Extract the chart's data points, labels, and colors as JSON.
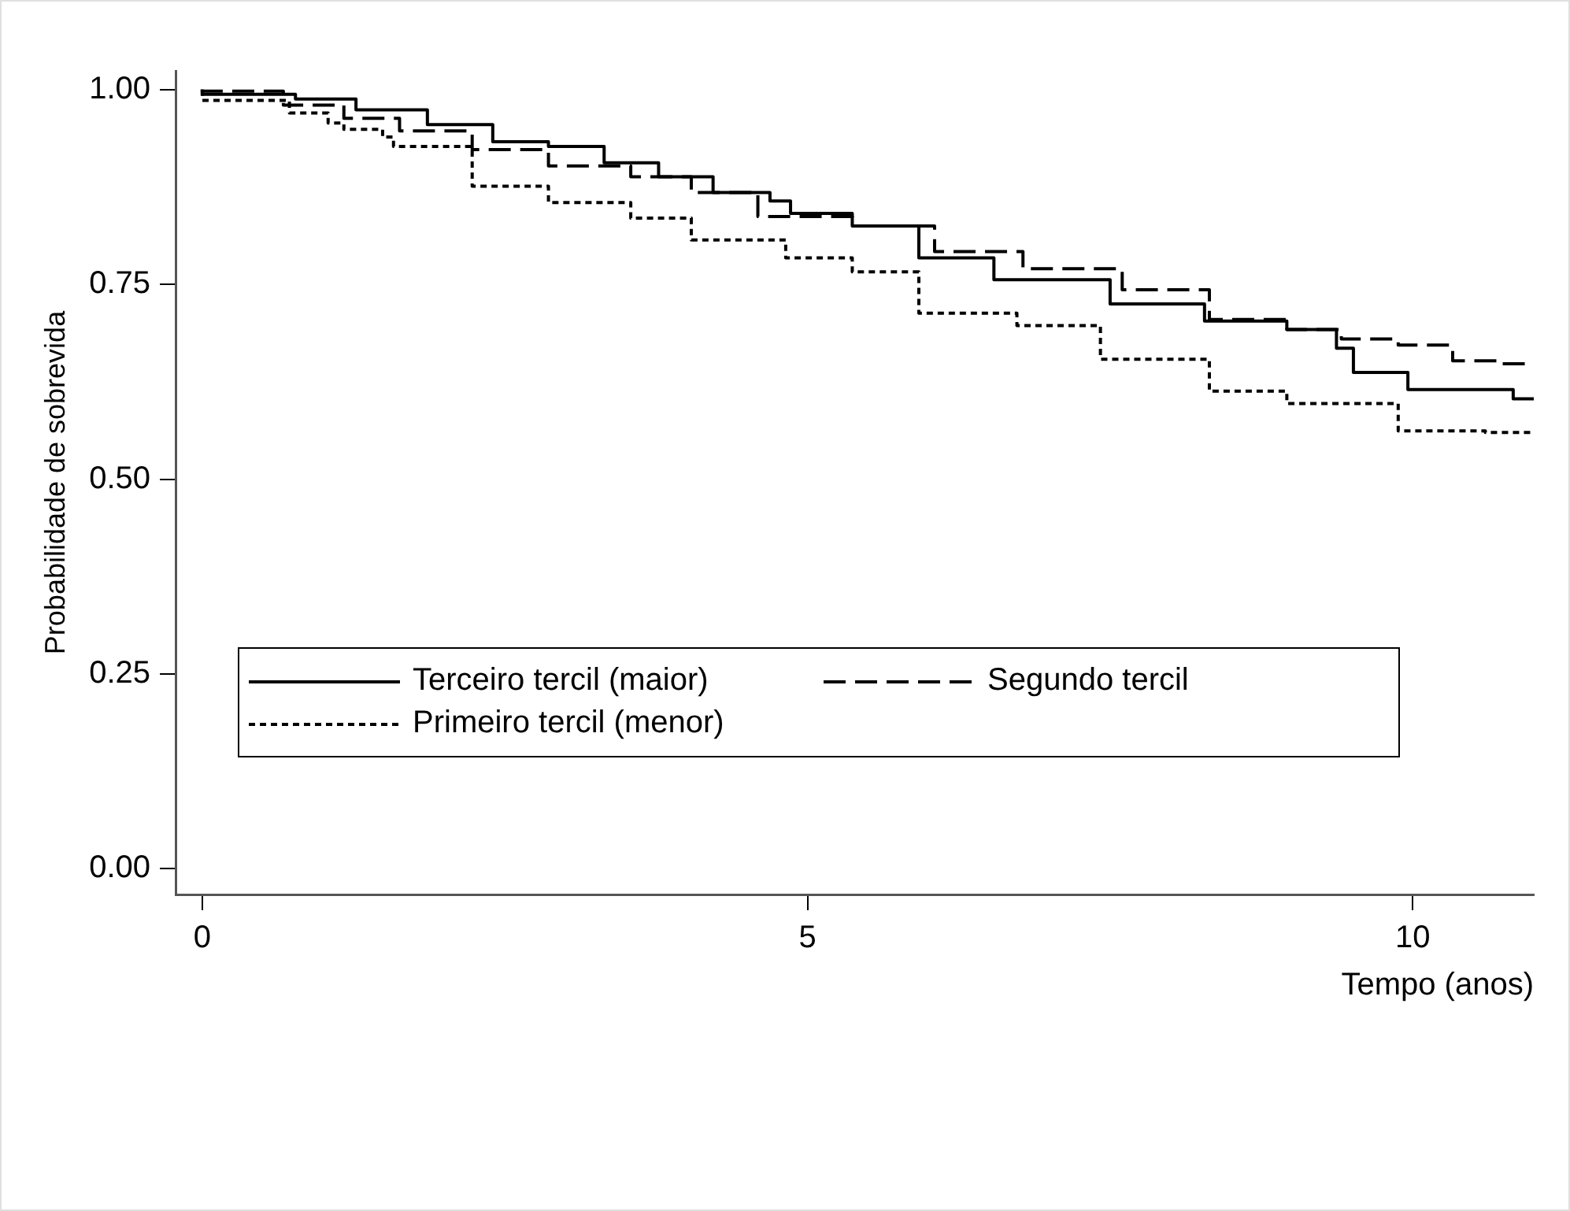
{
  "chart_data": {
    "type": "step",
    "xlabel": "Tempo (anos)",
    "ylabel": "Probabilidade de sobrevida",
    "xlim": [
      -0.22,
      11
    ],
    "xticks": [
      0,
      5,
      10
    ],
    "ylim": [
      -0.033,
      1.024
    ],
    "yticks": [
      {
        "value": 0,
        "label": "0.00"
      },
      {
        "value": 0.25,
        "label": "0.25"
      },
      {
        "value": 0.5,
        "label": "0.50"
      },
      {
        "value": 0.75,
        "label": "0.75"
      },
      {
        "value": 1,
        "label": "1.00"
      }
    ],
    "grid": false,
    "legend": "bottom",
    "marker": "none",
    "series": [
      {
        "name": "Terceiro tercil (maior)",
        "color": "#000000",
        "line_style": "solid",
        "x": [
          0,
          0.77,
          1.27,
          1.86,
          2.4,
          2.86,
          3.32,
          3.77,
          4.22,
          4.69,
          4.86,
          5.37,
          5.92,
          6.54,
          7.5,
          8.28,
          8.96,
          9.37,
          9.51,
          9.96,
          10.46,
          10.83,
          10.92,
          11
        ],
        "values": [
          1.0,
          0.994,
          0.988,
          0.974,
          0.955,
          0.933,
          0.927,
          0.906,
          0.888,
          0.868,
          0.857,
          0.841,
          0.825,
          0.784,
          0.756,
          0.725,
          0.703,
          0.692,
          0.668,
          0.637,
          0.615,
          0.615,
          0.603,
          0.603
        ]
      },
      {
        "name": "Segundo tercil",
        "color": "#000000",
        "line_style": "dashed",
        "x": [
          0,
          0.67,
          1.17,
          1.63,
          2.23,
          2.86,
          3.54,
          4.04,
          4.59,
          5.37,
          6.05,
          6.78,
          7.6,
          8.32,
          8.96,
          9.41,
          9.88,
          10.33,
          10.74,
          10.92,
          11
        ],
        "values": [
          1.0,
          0.998,
          0.98,
          0.963,
          0.947,
          0.923,
          0.902,
          0.888,
          0.868,
          0.837,
          0.825,
          0.792,
          0.77,
          0.743,
          0.705,
          0.692,
          0.68,
          0.672,
          0.652,
          0.648,
          0.648
        ]
      },
      {
        "name": "Primeiro tercil (menor)",
        "color": "#000000",
        "line_style": "dotted",
        "x": [
          0,
          0.72,
          1.04,
          1.17,
          1.49,
          1.58,
          2.23,
          2.86,
          3.54,
          4.04,
          4.82,
          5.37,
          5.92,
          6.73,
          7.42,
          8.32,
          8.96,
          9.88,
          10.6,
          10.9,
          11
        ],
        "values": [
          1.0,
          0.986,
          0.97,
          0.957,
          0.949,
          0.939,
          0.927,
          0.876,
          0.855,
          0.835,
          0.807,
          0.784,
          0.766,
          0.713,
          0.697,
          0.654,
          0.613,
          0.597,
          0.562,
          0.56,
          0.56
        ]
      }
    ]
  }
}
